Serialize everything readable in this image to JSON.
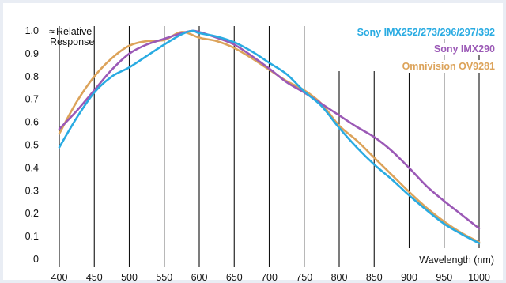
{
  "chart_data": {
    "type": "line",
    "title": "",
    "xlabel": "Wavelength (nm)",
    "ylabel": "Relative Response",
    "ylabel_prefix": "≈",
    "xlim": [
      400,
      1000
    ],
    "ylim": [
      0,
      1.0
    ],
    "x_ticks": [
      400,
      450,
      500,
      550,
      600,
      650,
      700,
      750,
      800,
      850,
      900,
      950,
      1000
    ],
    "y_ticks": [
      {
        "value": 0,
        "label": "0"
      },
      {
        "value": 0.1,
        "label": "0.1"
      },
      {
        "value": 0.2,
        "label": "0.2"
      },
      {
        "value": 0.3,
        "label": "0.3"
      },
      {
        "value": 0.4,
        "label": "0.4"
      },
      {
        "value": 0.5,
        "label": "0.5"
      },
      {
        "value": 0.6,
        "label": "0.6"
      },
      {
        "value": 0.7,
        "label": "0.7"
      },
      {
        "value": 0.8,
        "label": "0.8"
      },
      {
        "value": 0.9,
        "label": "0.9"
      },
      {
        "value": 1.0,
        "label": "1.0"
      }
    ],
    "grid": {
      "vertical": true,
      "horizontal": false
    },
    "legend_position": "top-right",
    "series": [
      {
        "name": "Sony IMX252/273/296/297/392",
        "color": "#29abe2",
        "points": [
          [
            400,
            0.49
          ],
          [
            425,
            0.62
          ],
          [
            450,
            0.73
          ],
          [
            475,
            0.8
          ],
          [
            500,
            0.84
          ],
          [
            525,
            0.89
          ],
          [
            550,
            0.94
          ],
          [
            575,
            0.985
          ],
          [
            590,
            1.0
          ],
          [
            600,
            0.99
          ],
          [
            625,
            0.975
          ],
          [
            650,
            0.95
          ],
          [
            675,
            0.91
          ],
          [
            700,
            0.86
          ],
          [
            725,
            0.81
          ],
          [
            750,
            0.735
          ],
          [
            775,
            0.67
          ],
          [
            800,
            0.575
          ],
          [
            825,
            0.49
          ],
          [
            850,
            0.415
          ],
          [
            875,
            0.35
          ],
          [
            900,
            0.28
          ],
          [
            925,
            0.215
          ],
          [
            950,
            0.155
          ],
          [
            975,
            0.11
          ],
          [
            1000,
            0.07
          ]
        ]
      },
      {
        "name": "Sony IMX290",
        "color": "#9b59b6",
        "points": [
          [
            400,
            0.57
          ],
          [
            425,
            0.65
          ],
          [
            450,
            0.74
          ],
          [
            475,
            0.83
          ],
          [
            500,
            0.9
          ],
          [
            525,
            0.94
          ],
          [
            550,
            0.965
          ],
          [
            575,
            0.99
          ],
          [
            590,
            1.0
          ],
          [
            600,
            0.995
          ],
          [
            625,
            0.97
          ],
          [
            650,
            0.94
          ],
          [
            675,
            0.89
          ],
          [
            700,
            0.835
          ],
          [
            725,
            0.775
          ],
          [
            750,
            0.73
          ],
          [
            775,
            0.68
          ],
          [
            800,
            0.63
          ],
          [
            825,
            0.58
          ],
          [
            850,
            0.535
          ],
          [
            875,
            0.475
          ],
          [
            900,
            0.4
          ],
          [
            925,
            0.32
          ],
          [
            950,
            0.255
          ],
          [
            975,
            0.195
          ],
          [
            1000,
            0.135
          ]
        ]
      },
      {
        "name": "Omnivision OV9281",
        "color": "#dca35a",
        "points": [
          [
            400,
            0.55
          ],
          [
            425,
            0.69
          ],
          [
            450,
            0.8
          ],
          [
            475,
            0.88
          ],
          [
            500,
            0.935
          ],
          [
            525,
            0.955
          ],
          [
            550,
            0.96
          ],
          [
            575,
            0.995
          ],
          [
            600,
            0.97
          ],
          [
            625,
            0.955
          ],
          [
            650,
            0.925
          ],
          [
            675,
            0.88
          ],
          [
            700,
            0.83
          ],
          [
            725,
            0.78
          ],
          [
            750,
            0.74
          ],
          [
            775,
            0.68
          ],
          [
            800,
            0.585
          ],
          [
            825,
            0.52
          ],
          [
            850,
            0.445
          ],
          [
            875,
            0.37
          ],
          [
            900,
            0.295
          ],
          [
            925,
            0.225
          ],
          [
            950,
            0.165
          ],
          [
            975,
            0.115
          ],
          [
            1000,
            0.075
          ]
        ]
      }
    ]
  }
}
